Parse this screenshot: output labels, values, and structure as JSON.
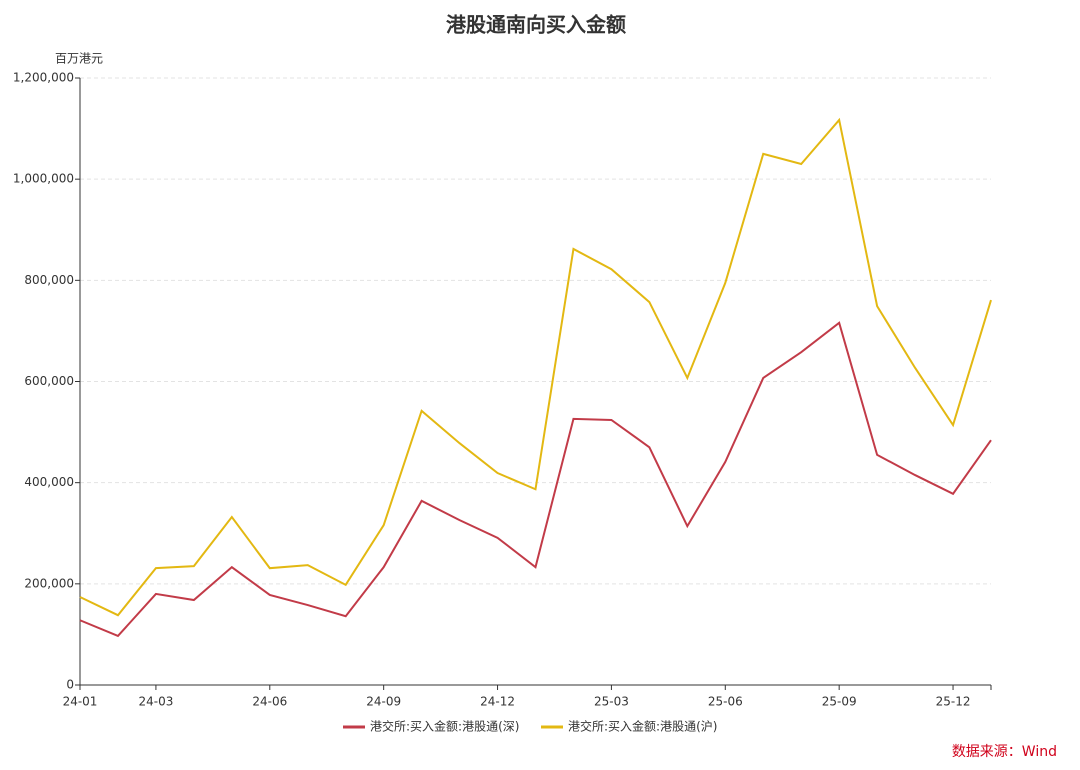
{
  "chart_data": {
    "type": "line",
    "title": "港股通南向买入金额",
    "y_unit": "百万港元",
    "source": "数据来源：Wind",
    "categories": [
      "24-01",
      null,
      "24-03",
      null,
      null,
      "24-06",
      null,
      null,
      "24-09",
      null,
      null,
      "24-12",
      null,
      null,
      "25-03",
      null,
      null,
      "25-06",
      null,
      null,
      "25-09",
      null,
      null,
      "25-12",
      null
    ],
    "series": [
      {
        "name": "港交所:买入金额:港股通(深)",
        "color": "#c23b48",
        "values": [
          128000,
          97000,
          180000,
          168000,
          233000,
          178000,
          158000,
          136000,
          233000,
          364000,
          326000,
          291000,
          233000,
          526000,
          524000,
          470000,
          314000,
          441000,
          607000,
          658000,
          716000,
          455000,
          415000,
          378000,
          484000
        ]
      },
      {
        "name": "港交所:买入金额:港股通(沪)",
        "color": "#e3b812",
        "values": [
          174000,
          138000,
          231000,
          235000,
          332000,
          231000,
          237000,
          198000,
          316000,
          542000,
          478000,
          419000,
          387000,
          862000,
          822000,
          757000,
          607000,
          795000,
          1050000,
          1030000,
          1117000,
          749000,
          627000,
          514000,
          761000
        ]
      }
    ],
    "ylim": [
      0,
      1200000
    ],
    "yticks": [
      0,
      {
        "value": 200000,
        "label": "200,000"
      },
      {
        "value": 400000,
        "label": "400,000"
      },
      {
        "value": 600000,
        "label": "600,000"
      },
      {
        "value": 800000,
        "label": "800,000"
      },
      {
        "value": 1000000,
        "label": "1,000,000"
      },
      {
        "value": 1200000,
        "label": "1,200,000"
      }
    ],
    "grid": true
  }
}
